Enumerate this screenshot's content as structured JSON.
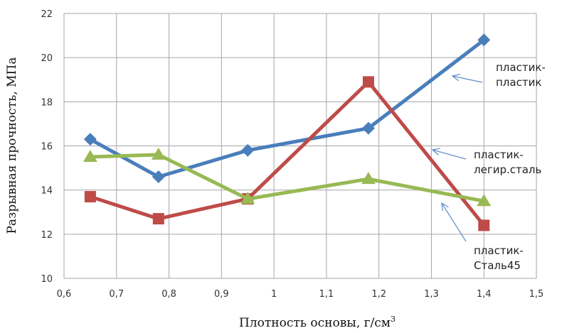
{
  "chart_data": {
    "type": "line",
    "xlabel": "Плотность основы, г/см",
    "xlabel_sup": "3",
    "ylabel": "Разрывная прочность, МПа",
    "xlim": [
      0.6,
      1.5
    ],
    "ylim": [
      10,
      22
    ],
    "xticks": [
      "0,6",
      "0,7",
      "0,8",
      "0,9",
      "1",
      "1,1",
      "1,2",
      "1,3",
      "1,4",
      "1,5"
    ],
    "yticks": [
      "10",
      "12",
      "14",
      "16",
      "18",
      "20",
      "22"
    ],
    "grid": true,
    "x": [
      0.65,
      0.78,
      0.95,
      1.18,
      1.4
    ],
    "series": [
      {
        "name": "пластик-пластик",
        "values": [
          16.3,
          14.6,
          15.8,
          16.8,
          20.8
        ],
        "color": "#4a7ebb",
        "marker": "diamond"
      },
      {
        "name": "пластик-легир.сталь",
        "values": [
          13.7,
          12.7,
          13.6,
          18.9,
          12.4
        ],
        "color": "#be4b48",
        "marker": "square"
      },
      {
        "name": "пластик-Сталь45",
        "values": [
          15.5,
          15.6,
          13.6,
          14.5,
          13.5
        ],
        "color": "#98b954",
        "marker": "triangle"
      }
    ],
    "annotations": [
      {
        "lines": [
          "пластик-",
          "пластик"
        ],
        "series": "пластик-пластик"
      },
      {
        "lines": [
          "пластик-",
          "легир.сталь"
        ],
        "series": "пластик-легир.сталь"
      },
      {
        "lines": [
          "пластик-",
          "Сталь45"
        ],
        "series": "пластик-Сталь45"
      }
    ]
  }
}
